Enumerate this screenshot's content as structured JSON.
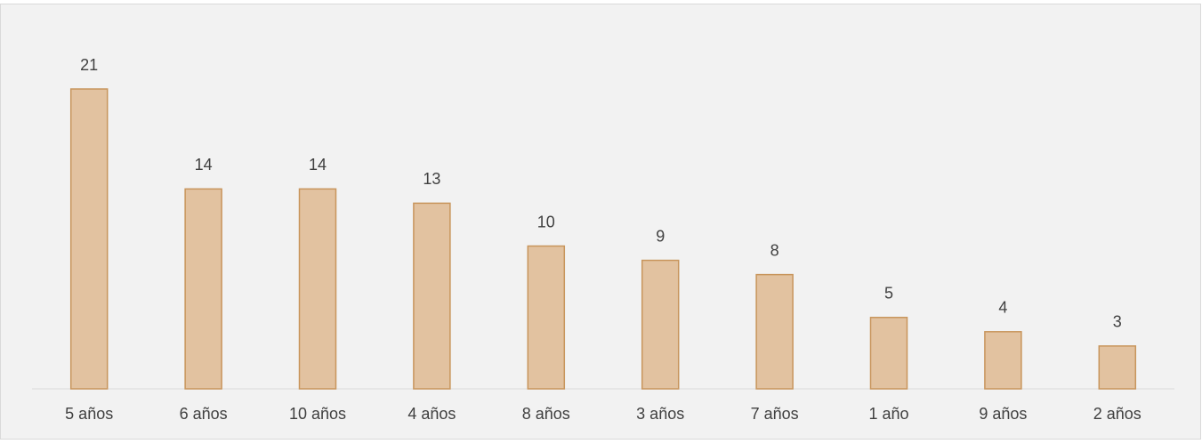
{
  "chart_data": {
    "type": "bar",
    "categories": [
      "5 años",
      "6 años",
      "10 años",
      "4 años",
      "8 años",
      "3 años",
      "7 años",
      "1 año",
      "9 años",
      "2 años"
    ],
    "values": [
      21,
      14,
      14,
      13,
      10,
      9,
      8,
      5,
      4,
      3
    ],
    "color": "#e2c2a0"
  }
}
